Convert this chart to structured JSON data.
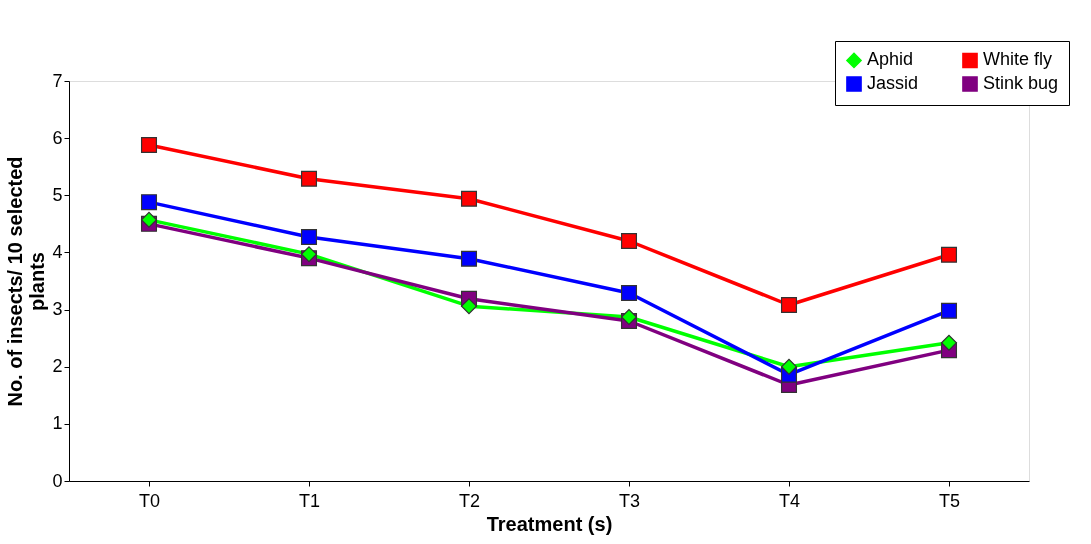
{
  "chart_data": {
    "type": "line",
    "xlabel": "Treatment (s)",
    "ylabel": "No. of insects/ 10 selected plants",
    "categories": [
      "T0",
      "T1",
      "T2",
      "T3",
      "T4",
      "T5"
    ],
    "series": [
      {
        "name": "Aphid",
        "color": "#00ff00",
        "marker": "diamond",
        "values": [
          4.57,
          3.97,
          3.06,
          2.87,
          2.0,
          2.42
        ]
      },
      {
        "name": "Jassid",
        "color": "#0000ff",
        "marker": "square",
        "values": [
          4.88,
          4.27,
          3.89,
          3.29,
          1.86,
          2.98
        ]
      },
      {
        "name": "White fly",
        "color": "#ff0000",
        "marker": "square",
        "values": [
          5.88,
          5.29,
          4.94,
          4.2,
          3.08,
          3.96
        ]
      },
      {
        "name": "Stink bug",
        "color": "#800080",
        "marker": "square",
        "values": [
          4.5,
          3.9,
          3.19,
          2.8,
          1.68,
          2.29
        ]
      }
    ],
    "ylim": [
      0,
      7
    ],
    "yticks": [
      0,
      1,
      2,
      3,
      4,
      5,
      6,
      7
    ],
    "grid": false,
    "legend": "top right",
    "line_style": "solid"
  }
}
